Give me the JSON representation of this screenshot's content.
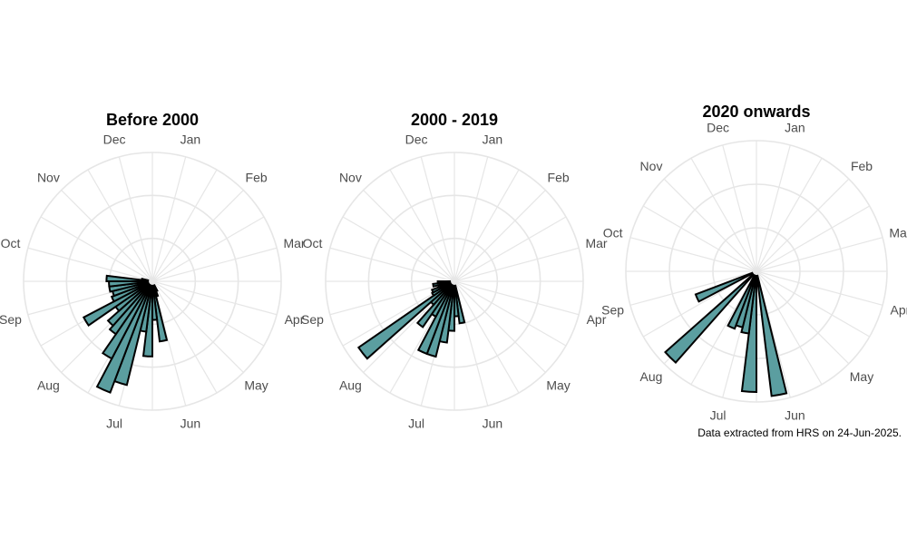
{
  "caption": "Data extracted from HRS on 24-Jun-2025.",
  "colors": {
    "bar_fill": "#5b9ea0",
    "bar_stroke": "#000000",
    "grid": "#e6e6e6",
    "label": "#4d4d4d"
  },
  "chart_data": [
    {
      "type": "polar_bar",
      "title": "Before 2000",
      "months": [
        "Jan",
        "Feb",
        "Mar",
        "Apr",
        "May",
        "Jun",
        "Jul",
        "Aug",
        "Sep",
        "Oct",
        "Nov",
        "Dec"
      ],
      "bins_per_year": 52,
      "radial_axis_labels": false,
      "grid_rings": 3,
      "r_max": 1.0,
      "bars": [
        {
          "week": 22,
          "value": 0.05
        },
        {
          "week": 23,
          "value": 0.09
        },
        {
          "week": 24,
          "value": 0.46
        },
        {
          "week": 25,
          "value": 0.28
        },
        {
          "week": 26,
          "value": 0.58
        },
        {
          "week": 27,
          "value": 0.38
        },
        {
          "week": 28,
          "value": 0.84
        },
        {
          "week": 29,
          "value": 0.94
        },
        {
          "week": 30,
          "value": 0.68
        },
        {
          "week": 31,
          "value": 0.49
        },
        {
          "week": 32,
          "value": 0.45
        },
        {
          "week": 33,
          "value": 0.33
        },
        {
          "week": 34,
          "value": 0.6
        },
        {
          "week": 35,
          "value": 0.32
        },
        {
          "week": 36,
          "value": 0.3
        },
        {
          "week": 37,
          "value": 0.32
        },
        {
          "week": 38,
          "value": 0.32
        },
        {
          "week": 39,
          "value": 0.34
        },
        {
          "week": 40,
          "value": 0.05
        }
      ]
    },
    {
      "type": "polar_bar",
      "title": "2000 - 2019",
      "months": [
        "Jan",
        "Feb",
        "Mar",
        "Apr",
        "May",
        "Jun",
        "Jul",
        "Aug",
        "Sep",
        "Oct",
        "Nov",
        "Dec"
      ],
      "bins_per_year": 52,
      "radial_axis_labels": false,
      "grid_rings": 3,
      "r_max": 1.0,
      "bars": [
        {
          "week": 24,
          "value": 0.31
        },
        {
          "week": 25,
          "value": 0.25
        },
        {
          "week": 26,
          "value": 0.37
        },
        {
          "week": 27,
          "value": 0.47
        },
        {
          "week": 28,
          "value": 0.6
        },
        {
          "week": 29,
          "value": 0.6
        },
        {
          "week": 30,
          "value": 0.29
        },
        {
          "week": 31,
          "value": 0.42
        },
        {
          "week": 32,
          "value": 0.22
        },
        {
          "week": 33,
          "value": 0.92
        },
        {
          "week": 34,
          "value": 0.17
        },
        {
          "week": 35,
          "value": 0.16
        },
        {
          "week": 36,
          "value": 0.1
        },
        {
          "week": 37,
          "value": 0.14
        },
        {
          "week": 38,
          "value": 0.1
        }
      ]
    },
    {
      "type": "polar_bar",
      "title": "2020 onwards",
      "months": [
        "Jan",
        "Feb",
        "Mar",
        "Apr",
        "May",
        "Jun",
        "Jul",
        "Aug",
        "Sep",
        "Oct",
        "Nov",
        "Dec"
      ],
      "bins_per_year": 52,
      "radial_axis_labels": false,
      "grid_rings": 3,
      "r_max": 1.0,
      "bars": [
        {
          "week": 24,
          "value": 0.98
        },
        {
          "week": 26,
          "value": 0.94
        },
        {
          "week": 27,
          "value": 0.47
        },
        {
          "week": 28,
          "value": 0.43
        },
        {
          "week": 29,
          "value": 0.46
        },
        {
          "week": 32,
          "value": 0.95
        },
        {
          "week": 35,
          "value": 0.49
        }
      ]
    }
  ]
}
